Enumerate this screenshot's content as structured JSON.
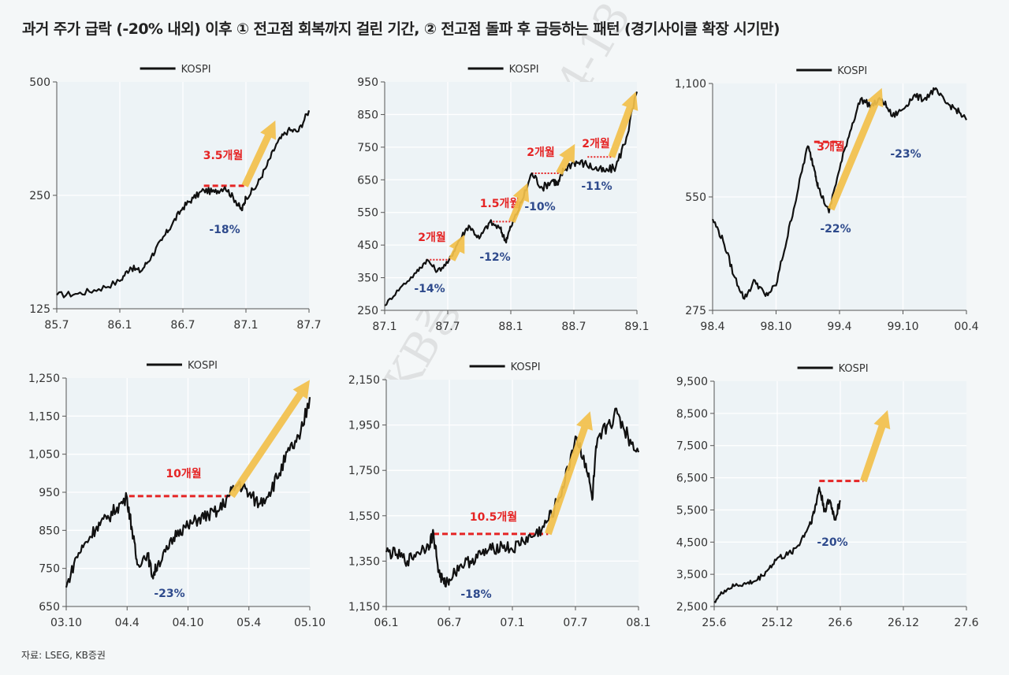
{
  "title": "과거 주가 급락 (-20% 내외) 이후 ① 전고점 회복까지 걸린 기간, ② 전고점 돌파 후 급등하는 패턴 (경기사이클 확장 시기만)",
  "source": "자료: LSEG, KB증권",
  "watermark": "KB증권 / 2026-04-13",
  "colors": {
    "line": "#111111",
    "arrow": "#f2c04a",
    "dash": "#e52424",
    "recovery_label": "#e52424",
    "drop_label": "#2e4a8c",
    "plot_bg": "#edf3f6",
    "grid": "#ffffff"
  },
  "chart_data": [
    {
      "type": "line",
      "legend": "KOSPI",
      "scale": "log",
      "ylim": [
        125,
        500
      ],
      "yticks": [
        "500",
        "250",
        "125"
      ],
      "ytick_values": [
        500,
        250,
        125
      ],
      "xlim": [
        0,
        24
      ],
      "xticks": [
        "85.7",
        "86.1",
        "86.7",
        "87.1",
        "87.7"
      ],
      "xtick_values": [
        0,
        6,
        12,
        18,
        24
      ],
      "series": [
        {
          "name": "KOSPI",
          "points": [
            [
              0,
              136
            ],
            [
              2,
              137
            ],
            [
              4,
              141
            ],
            [
              6,
              148
            ],
            [
              7,
              161
            ],
            [
              8,
              157
            ],
            [
              9,
              172
            ],
            [
              10,
              190
            ],
            [
              11,
              210
            ],
            [
              12,
              232
            ],
            [
              13,
              246
            ],
            [
              14,
              258
            ],
            [
              15,
              255
            ],
            [
              16,
              263
            ],
            [
              17,
              242
            ],
            [
              17.6,
              228
            ],
            [
              18,
              247
            ],
            [
              19,
              264
            ],
            [
              20,
              300
            ],
            [
              21,
              345
            ],
            [
              22,
              372
            ],
            [
              23,
              370
            ],
            [
              24,
              420
            ]
          ]
        }
      ],
      "recovery": {
        "label": "3.5개월",
        "y": 265,
        "x_start": 14,
        "x_end": 17.9
      },
      "drop": {
        "label": "-18%"
      },
      "arrow": {
        "from": [
          17.9,
          265
        ],
        "to": [
          20.8,
          395
        ]
      }
    },
    {
      "type": "line",
      "legend": "KOSPI",
      "scale": "linear",
      "ylim": [
        250,
        950
      ],
      "yticks": [
        "950",
        "850",
        "750",
        "650",
        "550",
        "450",
        "350",
        "250"
      ],
      "ytick_values": [
        950,
        850,
        750,
        650,
        550,
        450,
        350,
        250
      ],
      "xlim": [
        0,
        24
      ],
      "xticks": [
        "87.1",
        "87.7",
        "88.1",
        "88.7",
        "89.1"
      ],
      "xtick_values": [
        0,
        6,
        12,
        18,
        24
      ],
      "series": [
        {
          "name": "KOSPI",
          "points": [
            [
              0,
              265
            ],
            [
              1.5,
              320
            ],
            [
              3,
              365
            ],
            [
              4,
              405
            ],
            [
              5,
              370
            ],
            [
              6,
              395
            ],
            [
              7,
              460
            ],
            [
              8,
              510
            ],
            [
              9,
              470
            ],
            [
              10,
              520
            ],
            [
              11,
              500
            ],
            [
              11.5,
              462
            ],
            [
              12,
              505
            ],
            [
              13,
              580
            ],
            [
              14,
              670
            ],
            [
              15,
              625
            ],
            [
              16,
              650
            ],
            [
              16.5,
              635
            ],
            [
              17,
              680
            ],
            [
              18,
              705
            ],
            [
              19,
              700
            ],
            [
              20,
              685
            ],
            [
              21,
              675
            ],
            [
              22,
              690
            ],
            [
              23,
              780
            ],
            [
              24,
              920
            ]
          ]
        }
      ],
      "recoveries": [
        {
          "label": "2개월",
          "y": 405,
          "x_start": 4,
          "x_end": 6.4
        },
        {
          "label": "1.5개월",
          "y": 522,
          "x_start": 10,
          "x_end": 12.1
        },
        {
          "label": "2개월",
          "y": 670,
          "x_start": 14,
          "x_end": 16.6
        },
        {
          "label": "2개월",
          "y": 720,
          "x_start": 19.3,
          "x_end": 21.6
        }
      ],
      "drops": [
        "-14%",
        "-12%",
        "-10%",
        "-11%"
      ],
      "arrows": [
        {
          "from": [
            6.4,
            405
          ],
          "to": [
            7.6,
            482
          ]
        },
        {
          "from": [
            12.1,
            522
          ],
          "to": [
            13.6,
            640
          ]
        },
        {
          "from": [
            16.6,
            670
          ],
          "to": [
            18.1,
            760
          ]
        },
        {
          "from": [
            21.6,
            720
          ],
          "to": [
            23.9,
            920
          ]
        }
      ]
    },
    {
      "type": "line",
      "legend": "KOSPI",
      "scale": "log",
      "ylim": [
        275,
        1100
      ],
      "yticks": [
        "1,100",
        "550",
        "275"
      ],
      "ytick_values": [
        1100,
        550,
        275
      ],
      "xlim": [
        0,
        24
      ],
      "xticks": [
        "98.4",
        "98.10",
        "99.4",
        "99.10",
        "00.4"
      ],
      "xtick_values": [
        0,
        6,
        12,
        18,
        24
      ],
      "series": [
        {
          "name": "KOSPI",
          "points": [
            [
              0,
              480
            ],
            [
              1,
              420
            ],
            [
              2,
              340
            ],
            [
              3,
              295
            ],
            [
              4,
              330
            ],
            [
              5,
              300
            ],
            [
              6,
              320
            ],
            [
              7,
              420
            ],
            [
              8,
              560
            ],
            [
              9,
              750
            ],
            [
              9.7,
              640
            ],
            [
              10,
              580
            ],
            [
              11,
              500
            ],
            [
              12,
              650
            ],
            [
              13,
              820
            ],
            [
              14,
              1000
            ],
            [
              15,
              960
            ],
            [
              16,
              1000
            ],
            [
              17,
              900
            ],
            [
              18,
              940
            ],
            [
              19,
              1020
            ],
            [
              20,
              1000
            ],
            [
              21,
              1060
            ],
            [
              22,
              980
            ],
            [
              23,
              940
            ],
            [
              24,
              880
            ]
          ]
        }
      ],
      "recovery": {
        "label": "3개월",
        "y": 770,
        "x_start": 9.6,
        "x_end": 12.2
      },
      "drop": {
        "label": "-22%"
      },
      "drop2": {
        "label": "-23%"
      },
      "arrow": {
        "from": [
          11.2,
          510
        ],
        "to": [
          16,
          1070
        ]
      }
    },
    {
      "type": "line",
      "legend": "KOSPI",
      "scale": "linear",
      "ylim": [
        650,
        1250
      ],
      "yticks": [
        "1,250",
        "1,150",
        "1,050",
        "950",
        "850",
        "750",
        "650"
      ],
      "ytick_values": [
        1250,
        1150,
        1050,
        950,
        850,
        750,
        650
      ],
      "xlim": [
        0,
        24
      ],
      "xticks": [
        "03.10",
        "04.4",
        "04.10",
        "05.4",
        "05.10"
      ],
      "xtick_values": [
        0,
        6,
        12,
        18,
        24
      ],
      "series": [
        {
          "name": "KOSPI",
          "points": [
            [
              0,
              700
            ],
            [
              1,
              780
            ],
            [
              2,
              820
            ],
            [
              3,
              860
            ],
            [
              4,
              880
            ],
            [
              5,
              910
            ],
            [
              6,
              935
            ],
            [
              6.5,
              850
            ],
            [
              7,
              760
            ],
            [
              8,
              790
            ],
            [
              8.5,
              730
            ],
            [
              9,
              760
            ],
            [
              10,
              800
            ],
            [
              11,
              850
            ],
            [
              12,
              860
            ],
            [
              13,
              880
            ],
            [
              14,
              890
            ],
            [
              15,
              900
            ],
            [
              16,
              940
            ],
            [
              17,
              975
            ],
            [
              18,
              945
            ],
            [
              19,
              920
            ],
            [
              20,
              950
            ],
            [
              21,
              1000
            ],
            [
              22,
              1060
            ],
            [
              23,
              1090
            ],
            [
              24,
              1200
            ]
          ]
        }
      ],
      "recovery": {
        "label": "10개월",
        "y": 940,
        "x_start": 6.2,
        "x_end": 16.3
      },
      "drop": {
        "label": "-23%"
      },
      "arrow": {
        "from": [
          16.3,
          940
        ],
        "to": [
          24,
          1245
        ]
      }
    },
    {
      "type": "line",
      "legend": "KOSPI",
      "scale": "linear",
      "ylim": [
        1150,
        2150
      ],
      "yticks": [
        "2,150",
        "1,950",
        "1,750",
        "1,550",
        "1,350",
        "1,150"
      ],
      "ytick_values": [
        2150,
        1950,
        1750,
        1550,
        1350,
        1150
      ],
      "xlim": [
        0,
        24
      ],
      "xticks": [
        "06.1",
        "06.7",
        "07.1",
        "07.7",
        "08.1"
      ],
      "xtick_values": [
        0,
        6,
        12,
        18,
        24
      ],
      "series": [
        {
          "name": "KOSPI",
          "points": [
            [
              0,
              1390
            ],
            [
              1,
              1380
            ],
            [
              2,
              1350
            ],
            [
              3,
              1390
            ],
            [
              4,
              1420
            ],
            [
              4.5,
              1470
            ],
            [
              5,
              1300
            ],
            [
              5.5,
              1250
            ],
            [
              6,
              1270
            ],
            [
              7,
              1330
            ],
            [
              8,
              1350
            ],
            [
              9,
              1380
            ],
            [
              10,
              1400
            ],
            [
              11,
              1420
            ],
            [
              12,
              1400
            ],
            [
              13,
              1440
            ],
            [
              14,
              1460
            ],
            [
              15,
              1500
            ],
            [
              16,
              1580
            ],
            [
              17,
              1700
            ],
            [
              18,
              1900
            ],
            [
              19,
              1780
            ],
            [
              19.6,
              1620
            ],
            [
              20,
              1850
            ],
            [
              21,
              1950
            ],
            [
              22,
              2000
            ],
            [
              23,
              1900
            ],
            [
              24,
              1830
            ]
          ]
        }
      ],
      "recovery": {
        "label": "10.5개월",
        "y": 1470,
        "x_start": 4.5,
        "x_end": 15.4
      },
      "drop": {
        "label": "-18%"
      },
      "arrow": {
        "from": [
          15.4,
          1470
        ],
        "to": [
          19.4,
          2010
        ]
      }
    },
    {
      "type": "line",
      "legend": "KOSPI",
      "scale": "linear",
      "ylim": [
        2500,
        9500
      ],
      "yticks": [
        "9,500",
        "8,500",
        "7,500",
        "6,500",
        "5,500",
        "4,500",
        "3,500",
        "2,500"
      ],
      "ytick_values": [
        9500,
        8500,
        7500,
        6500,
        5500,
        4500,
        3500,
        2500
      ],
      "xlim": [
        0,
        24
      ],
      "xticks": [
        "25.6",
        "25.12",
        "26.6",
        "26.12",
        "27.6"
      ],
      "xtick_values": [
        0,
        6,
        12,
        18,
        24
      ],
      "series": [
        {
          "name": "KOSPI",
          "points": [
            [
              0,
              2650
            ],
            [
              1,
              3000
            ],
            [
              2,
              3150
            ],
            [
              3,
              3200
            ],
            [
              4,
              3300
            ],
            [
              5,
              3600
            ],
            [
              6,
              4000
            ],
            [
              7,
              4100
            ],
            [
              8,
              4400
            ],
            [
              9,
              5000
            ],
            [
              9.5,
              5400
            ],
            [
              10,
              6200
            ],
            [
              10.5,
              5500
            ],
            [
              11,
              5800
            ],
            [
              11.5,
              5200
            ],
            [
              12,
              5800
            ]
          ]
        }
      ],
      "recovery": {
        "label": "",
        "y": 6400,
        "x_start": 10,
        "x_end": 14.2
      },
      "drop": {
        "label": "-20%"
      },
      "arrow": {
        "from": [
          14.2,
          6400
        ],
        "to": [
          16.5,
          8600
        ]
      }
    }
  ]
}
